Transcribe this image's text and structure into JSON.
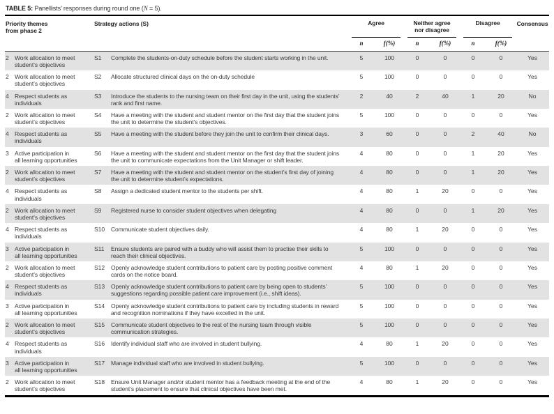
{
  "title": {
    "label": "TABLE 5:",
    "pre": " Panellists’ responses during round one (",
    "n_symbol": "N",
    "post": " = 5)."
  },
  "columns": {
    "priority": "Priority themes\nfrom phase 2",
    "strategy": "Strategy actions (S)",
    "groups": [
      "Agree",
      "Neither agree\nnor disagree",
      "Disagree"
    ],
    "sub_n": "n",
    "sub_f": "f(%)",
    "consensus": "Consensus"
  },
  "colors": {
    "stripe": "#e2e2e2",
    "text": "#3b3b3b",
    "rule": "#000000"
  },
  "rows": [
    {
      "priority_num": "2",
      "theme": "Work allocation to meet\nstudent’s objectives",
      "code": "S1",
      "action": "Complete the students-on-duty schedule before the student starts working in the unit.",
      "agree_n": "5",
      "agree_f": "100",
      "neither_n": "0",
      "neither_f": "0",
      "disagree_n": "0",
      "disagree_f": "0",
      "consensus": "Yes"
    },
    {
      "priority_num": "2",
      "theme": "Work allocation to meet\nstudent’s objectives",
      "code": "S2",
      "action": "Allocate structured clinical days on the on-duty schedule",
      "agree_n": "5",
      "agree_f": "100",
      "neither_n": "0",
      "neither_f": "0",
      "disagree_n": "0",
      "disagree_f": "0",
      "consensus": "Yes"
    },
    {
      "priority_num": "4",
      "theme": "Respect students as\nindividuals",
      "code": "S3",
      "action": "Introduce the students to the nursing team on their first day in the unit, using the students’ rank and first name.",
      "agree_n": "2",
      "agree_f": "40",
      "neither_n": "2",
      "neither_f": "40",
      "disagree_n": "1",
      "disagree_f": "20",
      "consensus": "No"
    },
    {
      "priority_num": "2",
      "theme": "Work allocation to meet\nstudent’s objectives",
      "code": "S4",
      "action": "Have a meeting with the student and student mentor on the first day that the student joins the unit to determine the student’s objectives.",
      "agree_n": "5",
      "agree_f": "100",
      "neither_n": "0",
      "neither_f": "0",
      "disagree_n": "0",
      "disagree_f": "0",
      "consensus": "Yes"
    },
    {
      "priority_num": "4",
      "theme": "Respect students as\nindividuals",
      "code": "S5",
      "action": "Have a meeting with the student before they join the unit to confirm their clinical days.",
      "agree_n": "3",
      "agree_f": "60",
      "neither_n": "0",
      "neither_f": "0",
      "disagree_n": "2",
      "disagree_f": "40",
      "consensus": "No"
    },
    {
      "priority_num": "3",
      "theme": "Active participation in\nall learning opportunities",
      "code": "S6",
      "action": "Have a meeting with the student and student mentor on the first day that the student joins the unit to communicate expectations from the Unit Manager or shift leader.",
      "agree_n": "4",
      "agree_f": "80",
      "neither_n": "0",
      "neither_f": "0",
      "disagree_n": "1",
      "disagree_f": "20",
      "consensus": "Yes"
    },
    {
      "priority_num": "2",
      "theme": "Work allocation to meet\nstudent’s objectives",
      "code": "S7",
      "action": "Have a meeting with the student and student mentor on the student’s first day of joining the unit to determine student’s expectations.",
      "agree_n": "4",
      "agree_f": "80",
      "neither_n": "0",
      "neither_f": "0",
      "disagree_n": "1",
      "disagree_f": "20",
      "consensus": "Yes"
    },
    {
      "priority_num": "4",
      "theme": "Respect students as\nindividuals",
      "code": "S8",
      "action": "Assign a dedicated student mentor to the students per shift.",
      "agree_n": "4",
      "agree_f": "80",
      "neither_n": "1",
      "neither_f": "20",
      "disagree_n": "0",
      "disagree_f": "0",
      "consensus": "Yes"
    },
    {
      "priority_num": "2",
      "theme": "Work allocation to meet\nstudent’s objectives",
      "code": "S9",
      "action": "Registered nurse to consider student objectives when delegating",
      "agree_n": "4",
      "agree_f": "80",
      "neither_n": "0",
      "neither_f": "0",
      "disagree_n": "1",
      "disagree_f": "20",
      "consensus": "Yes"
    },
    {
      "priority_num": "4",
      "theme": "Respect students as\nindividuals",
      "code": "S10",
      "action": "Communicate student objectives daily.",
      "agree_n": "4",
      "agree_f": "80",
      "neither_n": "1",
      "neither_f": "20",
      "disagree_n": "0",
      "disagree_f": "0",
      "consensus": "Yes"
    },
    {
      "priority_num": "3",
      "theme": "Active participation in\nall learning opportunities",
      "code": "S11",
      "action": "Ensure students are paired with a buddy who will assist them to practise their skills to reach their clinical objectives.",
      "agree_n": "5",
      "agree_f": "100",
      "neither_n": "0",
      "neither_f": "0",
      "disagree_n": "0",
      "disagree_f": "0",
      "consensus": "Yes"
    },
    {
      "priority_num": "2",
      "theme": "Work allocation to meet\nstudent’s objectives",
      "code": "S12",
      "action": "Openly acknowledge student contributions to patient care by posting positive comment cards on the notice board.",
      "agree_n": "4",
      "agree_f": "80",
      "neither_n": "1",
      "neither_f": "20",
      "disagree_n": "0",
      "disagree_f": "0",
      "consensus": "Yes"
    },
    {
      "priority_num": "4",
      "theme": "Respect students as\nindividuals",
      "code": "S13",
      "action": "Openly acknowledge student contributions to patient care by being open to students’ suggestions regarding possible patient care improvement (i.e., shift ideas).",
      "agree_n": "5",
      "agree_f": "100",
      "neither_n": "0",
      "neither_f": "0",
      "disagree_n": "0",
      "disagree_f": "0",
      "consensus": "Yes"
    },
    {
      "priority_num": "3",
      "theme": "Active participation in\nall learning opportunities",
      "code": "S14",
      "action": "Openly acknowledge student contributions to patient care by including students in reward and recognition nominations if they have excelled in the unit.",
      "agree_n": "5",
      "agree_f": "100",
      "neither_n": "0",
      "neither_f": "0",
      "disagree_n": "0",
      "disagree_f": "0",
      "consensus": "Yes"
    },
    {
      "priority_num": "2",
      "theme": "Work allocation to meet\nstudent’s objectives",
      "code": "S15",
      "action": "Communicate student objectives to the rest of the nursing team through visible communication strategies.",
      "agree_n": "5",
      "agree_f": "100",
      "neither_n": "0",
      "neither_f": "0",
      "disagree_n": "0",
      "disagree_f": "0",
      "consensus": "Yes"
    },
    {
      "priority_num": "4",
      "theme": "Respect students as\nindividuals",
      "code": "S16",
      "action": "Identify individual staff who are involved in student bullying.",
      "agree_n": "4",
      "agree_f": "80",
      "neither_n": "1",
      "neither_f": "20",
      "disagree_n": "0",
      "disagree_f": "0",
      "consensus": "Yes"
    },
    {
      "priority_num": "3",
      "theme": "Active participation in\nall learning opportunities",
      "code": "S17",
      "action": "Manage individual staff who are involved in student bullying.",
      "agree_n": "5",
      "agree_f": "100",
      "neither_n": "0",
      "neither_f": "0",
      "disagree_n": "0",
      "disagree_f": "0",
      "consensus": "Yes"
    },
    {
      "priority_num": "2",
      "theme": "Work allocation to meet\nstudent’s objectives",
      "code": "S18",
      "action": "Ensure Unit Manager and/or student mentor has a feedback meeting at the end of the student’s placement to ensure that clinical objectives have been met.",
      "agree_n": "4",
      "agree_f": "80",
      "neither_n": "1",
      "neither_f": "20",
      "disagree_n": "0",
      "disagree_f": "0",
      "consensus": "Yes"
    }
  ]
}
